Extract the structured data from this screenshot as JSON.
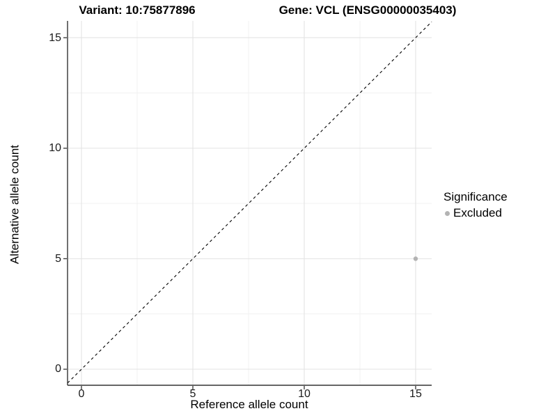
{
  "titles": {
    "variant": "Variant: 10:75877896",
    "gene": "Gene: VCL (ENSG00000035403)"
  },
  "chart_data": {
    "type": "scatter",
    "xlabel": "Reference allele count",
    "ylabel": "Alternative allele count",
    "x_ticks": [
      0,
      5,
      10,
      15
    ],
    "y_ticks": [
      0,
      5,
      10,
      15
    ],
    "x_minor_ticks": [
      2.5,
      7.5,
      12.5
    ],
    "y_minor_ticks": [
      2.5,
      7.5,
      12.5
    ],
    "xlim": [
      -0.625,
      15.72
    ],
    "ylim": [
      -0.725,
      15.76
    ],
    "grid": "on",
    "reference_line": {
      "type": "identity",
      "style": "dashed",
      "color": "#000000"
    },
    "series": [
      {
        "name": "Excluded",
        "color": "#b3b3b3",
        "marker": "circle",
        "points": [
          {
            "x": 15,
            "y": 5
          }
        ]
      }
    ],
    "legend": {
      "title": "Significance",
      "position": "right",
      "items": [
        {
          "label": "Excluded",
          "color": "#b3b3b3"
        }
      ]
    },
    "colors": {
      "grid_major": "#e3e3e3",
      "grid_minor": "#f1f1f1",
      "axis": "#333333",
      "tick": "#333333",
      "background": "#ffffff"
    }
  }
}
